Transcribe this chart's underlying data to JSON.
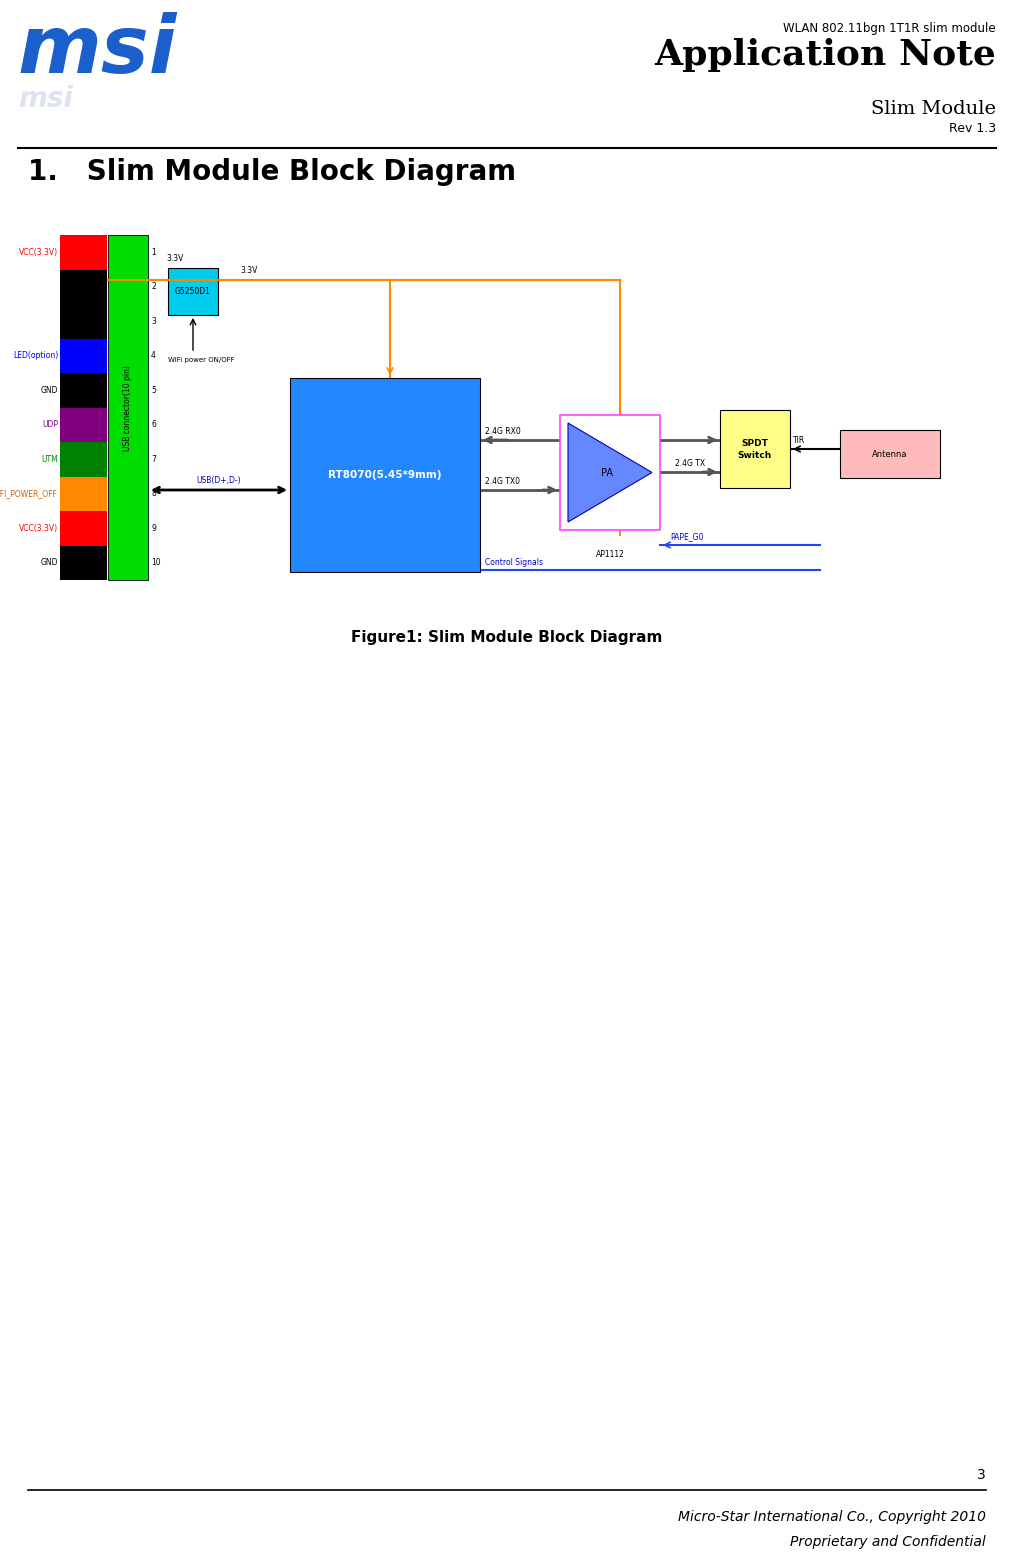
{
  "page_title_sub": "WLAN 802.11bgn 1T1R slim module",
  "page_title_main": "Application Note",
  "page_title_sub2": "Slim Module",
  "page_title_rev": "Rev 1.3",
  "section_title": "1.   Slim Module Block Diagram",
  "figure_caption": "Figure1: Slim Module Block Diagram",
  "page_number": "3",
  "footer_line1": "Micro-Star International Co., Copyright 2010",
  "footer_line2": "Proprietary and Confidential",
  "connector_labels": [
    "VCC(3.3V)",
    "",
    "",
    "LED(option)",
    "GND",
    "UDP",
    "UTM",
    "WIFI_POWER_OFF",
    "VCC(3.3V)",
    "GND"
  ],
  "connector_numbers": [
    "1",
    "2",
    "3",
    "4",
    "5",
    "6",
    "7",
    "8",
    "9",
    "10"
  ],
  "pin_text_colors": [
    "#ff0000",
    "#000000",
    "#000000",
    "#0000ff",
    "#000000",
    "#800080",
    "#008000",
    "#cc6600",
    "#ff0000",
    "#000000"
  ],
  "pin_bar_colors": [
    "#ff0000",
    "#000000",
    "#000000",
    "#0000ff",
    "#000000",
    "#800080",
    "#008000",
    "#ff8800",
    "#ff0000",
    "#000000"
  ],
  "green_bar_color": "#00dd00",
  "blue_box_color": "#2288ff",
  "cyan_box_color": "#00ccee",
  "yellow_box_color": "#ffff88",
  "magenta_border_color": "#ff44ff",
  "orange_line_color": "#ff8800",
  "blue_line_color": "#2244ff",
  "antenna_color": "#ffbbbb"
}
